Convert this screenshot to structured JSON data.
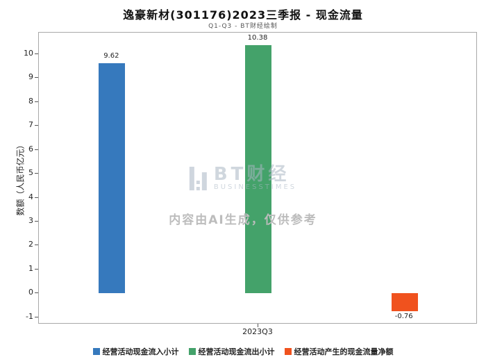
{
  "title": "逸豪新材(301176)2023三季报 - 现金流量",
  "subtitle": "Q1-Q3 - BT财经绘制",
  "watermark": {
    "brand": "BT财经",
    "brand_sub": "BUSINESSTIMES",
    "disclaimer": "内容由AI生成，仅供参考"
  },
  "chart_data": {
    "type": "bar",
    "title": "逸豪新材(301176)2023三季报 - 现金流量",
    "subtitle": "Q1-Q3 - BT财经绘制",
    "categories": [
      "2023Q3"
    ],
    "series": [
      {
        "name": "经营活动现金流入小计",
        "values": [
          9.62
        ],
        "color": "#3679bd"
      },
      {
        "name": "经营活动现金流出小计",
        "values": [
          10.38
        ],
        "color": "#44a26a"
      },
      {
        "name": "经营活动产生的现金流量净额",
        "values": [
          -0.76
        ],
        "color": "#f0521e"
      }
    ],
    "xlabel": "",
    "ylabel": "数额（人民币亿元）",
    "ylim": [
      -1.3,
      10.9
    ],
    "yticks": [
      -1,
      0,
      1,
      2,
      3,
      4,
      5,
      6,
      7,
      8,
      9,
      10
    ],
    "grid": false,
    "legend_position": "bottom"
  }
}
